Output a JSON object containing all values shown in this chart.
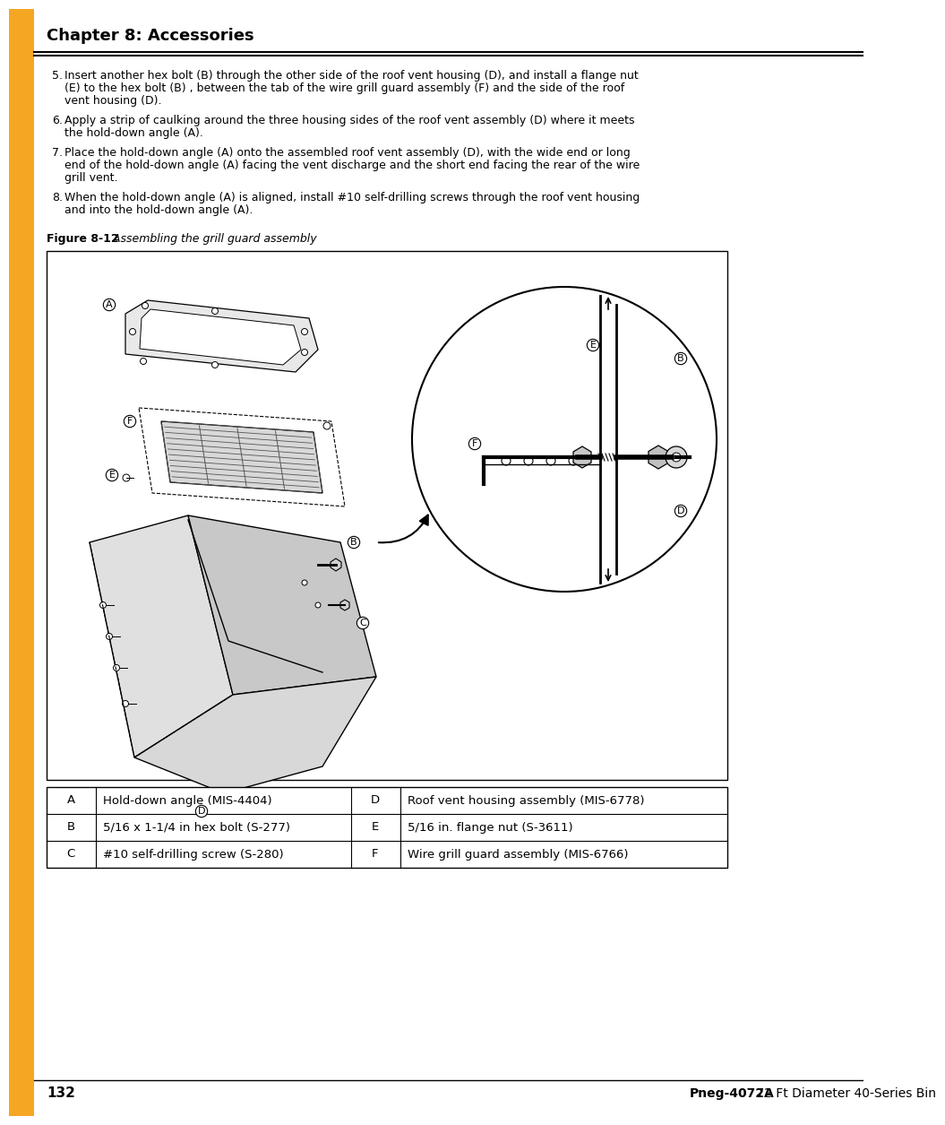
{
  "title": "Chapter 8: Accessories",
  "orange_bar_color": "#F5A623",
  "background_color": "#ffffff",
  "text_color": "#000000",
  "body_items": [
    {
      "num": "5.",
      "text": "Insert another hex bolt (B) through the other side of the roof vent housing (D), and install a flange nut\n    (E) to the hex bolt (B) , between the tab of the wire grill guard assembly (F) and the side of the roof\n    vent housing (D)."
    },
    {
      "num": "6.",
      "text": "Apply a strip of caulking around the three housing sides of the roof vent assembly (D) where it meets\n    the hold-down angle (A)."
    },
    {
      "num": "7.",
      "text": "Place the hold-down angle (A) onto the assembled roof vent assembly (D), with the wide end or long\n    end of the hold-down angle (A) facing the vent discharge and the short end facing the rear of the wire\n    grill vent."
    },
    {
      "num": "8.",
      "text": "When the hold-down angle (A) is aligned, install #10 self-drilling screws through the roof vent housing\n    and into the hold-down angle (A)."
    }
  ],
  "figure_label": "Figure 8-12",
  "figure_caption": " Assembling the grill guard assembly",
  "table_rows": [
    {
      "left_letter": "A",
      "left_desc": "Hold-down angle (MIS-4404)",
      "right_letter": "D",
      "right_desc": "Roof vent housing assembly (MIS-6778)"
    },
    {
      "left_letter": "B",
      "left_desc": "5/16 x 1-1/4 in hex bolt (S-277)",
      "right_letter": "E",
      "right_desc": "5/16 in. flange nut (S-3611)"
    },
    {
      "left_letter": "C",
      "left_desc": "#10 self-drilling screw (S-280)",
      "right_letter": "F",
      "right_desc": "Wire grill guard assembly (MIS-6766)"
    }
  ],
  "footer_page": "132",
  "footer_right_bold": "Pneg-4072A",
  "footer_right_normal": " 72 Ft Diameter 40-Series Bin"
}
